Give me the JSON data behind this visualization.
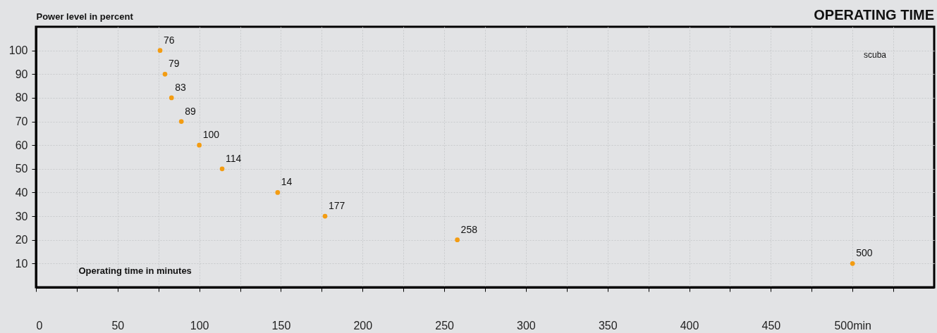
{
  "chart_data": {
    "type": "scatter",
    "title": "OPERATING TIME",
    "xlabel": "Operating time in minutes",
    "ylabel": "Power level in percent",
    "annotations": [
      "scuba",
      {
        "text": "76",
        "x": 76,
        "y": 100
      },
      {
        "text": "79",
        "x": 79,
        "y": 90
      },
      {
        "text": "83",
        "x": 83,
        "y": 80
      },
      {
        "text": "89",
        "x": 89,
        "y": 70
      },
      {
        "text": "100",
        "x": 100,
        "y": 60
      },
      {
        "text": "114",
        "x": 114,
        "y": 50
      },
      {
        "text": "14",
        "x": 148,
        "y": 40
      },
      {
        "text": "177",
        "x": 177,
        "y": 30
      },
      {
        "text": "258",
        "x": 258,
        "y": 20
      },
      {
        "text": "500",
        "x": 500,
        "y": 10
      }
    ],
    "x": [
      76,
      79,
      83,
      89,
      100,
      114,
      148,
      177,
      258,
      500
    ],
    "series": [
      {
        "color": "#f39c12",
        "values": [
          100,
          90,
          80,
          70,
          60,
          50,
          40,
          30,
          20,
          10
        ]
      }
    ],
    "xlim": [
      0,
      550
    ],
    "ylim": [
      0,
      110
    ],
    "xticks": [
      0,
      {
        "value": 25,
        "label": null
      },
      50,
      {
        "value": 75,
        "label": null
      },
      100,
      {
        "value": 125,
        "label": null
      },
      150,
      {
        "value": 175,
        "label": null
      },
      200,
      {
        "value": 225,
        "label": null
      },
      250,
      {
        "value": 275,
        "label": null
      },
      300,
      {
        "value": 325,
        "label": null
      },
      350,
      {
        "value": 375,
        "label": null
      },
      400,
      {
        "value": 425,
        "label": null
      },
      450,
      {
        "value": 475,
        "label": null
      },
      {
        "value": 500,
        "label": "500min"
      },
      {
        "value": 525,
        "label": null
      }
    ],
    "yticks": [
      10,
      20,
      30,
      40,
      50,
      60,
      70,
      80,
      90,
      100
    ],
    "grid": true,
    "marker": "circle"
  }
}
